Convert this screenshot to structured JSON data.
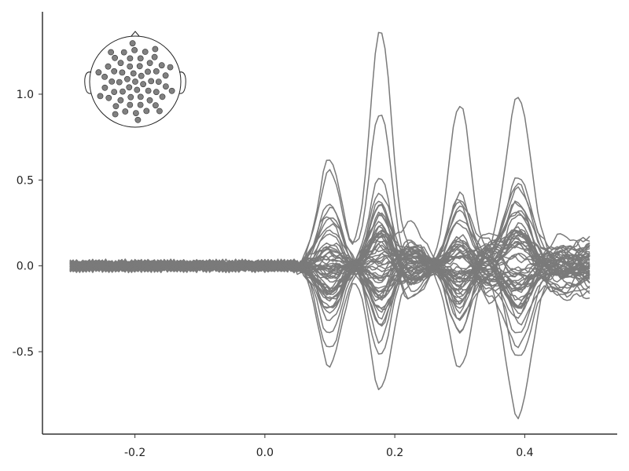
{
  "chart_data": {
    "type": "line",
    "title": "",
    "xlabel": "",
    "ylabel": "",
    "xlim": [
      -0.3,
      0.5
    ],
    "ylim": [
      -0.98,
      1.48
    ],
    "x_ticks": [
      {
        "value": -0.2,
        "label": "-0.2"
      },
      {
        "value": 0.0,
        "label": "0.0"
      },
      {
        "value": 0.2,
        "label": "0.2"
      },
      {
        "value": 0.4,
        "label": "0.4"
      }
    ],
    "y_ticks": [
      {
        "value": -0.5,
        "label": "-0.5"
      },
      {
        "value": 0.0,
        "label": "0.0"
      },
      {
        "value": 0.5,
        "label": "0.5"
      },
      {
        "value": 1.0,
        "label": "1.0"
      }
    ],
    "series_count": 59,
    "series_color": "#7a7a7a",
    "x_start": -0.3,
    "x_step": 0.005,
    "key_extrema": [
      {
        "x": 0.178,
        "y": 1.37
      },
      {
        "x": 0.1,
        "y": 0.64
      },
      {
        "x": 0.095,
        "y": -0.6
      },
      {
        "x": 0.19,
        "y": -0.74
      },
      {
        "x": 0.3,
        "y": 0.95
      },
      {
        "x": 0.39,
        "y": 0.98
      },
      {
        "x": 0.39,
        "y": -0.87
      },
      {
        "x": 0.5,
        "y": 0.28
      },
      {
        "x": 0.5,
        "y": -0.34
      }
    ],
    "grid": false,
    "legend": "none",
    "inset": {
      "type": "sensor-layout",
      "placement": "top-left",
      "sensor_color": "#808080"
    }
  }
}
